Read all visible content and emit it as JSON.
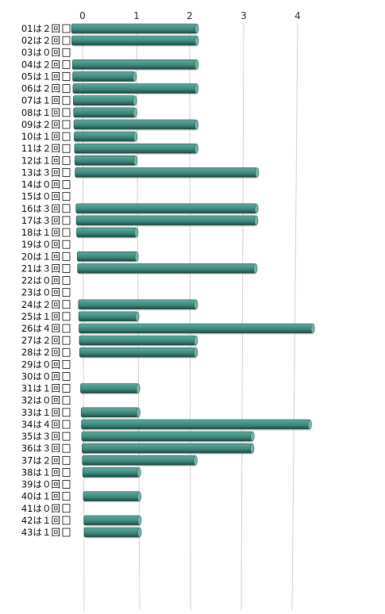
{
  "chart_data": {
    "type": "bar",
    "orientation": "horizontal",
    "categories": [
      "01は２回",
      "02は２回",
      "03は０回",
      "04は２回",
      "05は１回",
      "06は２回",
      "07は１回",
      "08は１回",
      "09は２回",
      "10は１回",
      "11は２回",
      "12は１回",
      "13は３回",
      "14は０回",
      "15は０回",
      "16は３回",
      "17は３回",
      "18は１回",
      "19は０回",
      "20は１回",
      "21は３回",
      "22は０回",
      "23は０回",
      "24は２回",
      "25は１回",
      "26は４回",
      "27は２回",
      "28は２回",
      "29は０回",
      "30は０回",
      "31は１回",
      "32は０回",
      "33は１回",
      "34は４回",
      "35は３回",
      "36は３回",
      "37は２回",
      "38は１回",
      "39は０回",
      "40は１回",
      "41は０回",
      "42は１回",
      "43は１回"
    ],
    "values": [
      2,
      2,
      0,
      2,
      1,
      2,
      1,
      1,
      2,
      1,
      2,
      1,
      3,
      0,
      0,
      3,
      3,
      1,
      0,
      1,
      3,
      0,
      0,
      2,
      1,
      4,
      2,
      2,
      0,
      0,
      1,
      0,
      1,
      4,
      3,
      3,
      2,
      1,
      0,
      1,
      0,
      1,
      1
    ],
    "x_ticks": [
      "0",
      "1",
      "2",
      "3",
      "4"
    ],
    "xlim": [
      0,
      4
    ],
    "axis_position": "top",
    "grid": true,
    "bar_color": "#3f8a80",
    "bar_top_color": "#5fa89c",
    "bar_shadow_color": "#1f4a44",
    "title": "",
    "xlabel": "",
    "ylabel": ""
  }
}
